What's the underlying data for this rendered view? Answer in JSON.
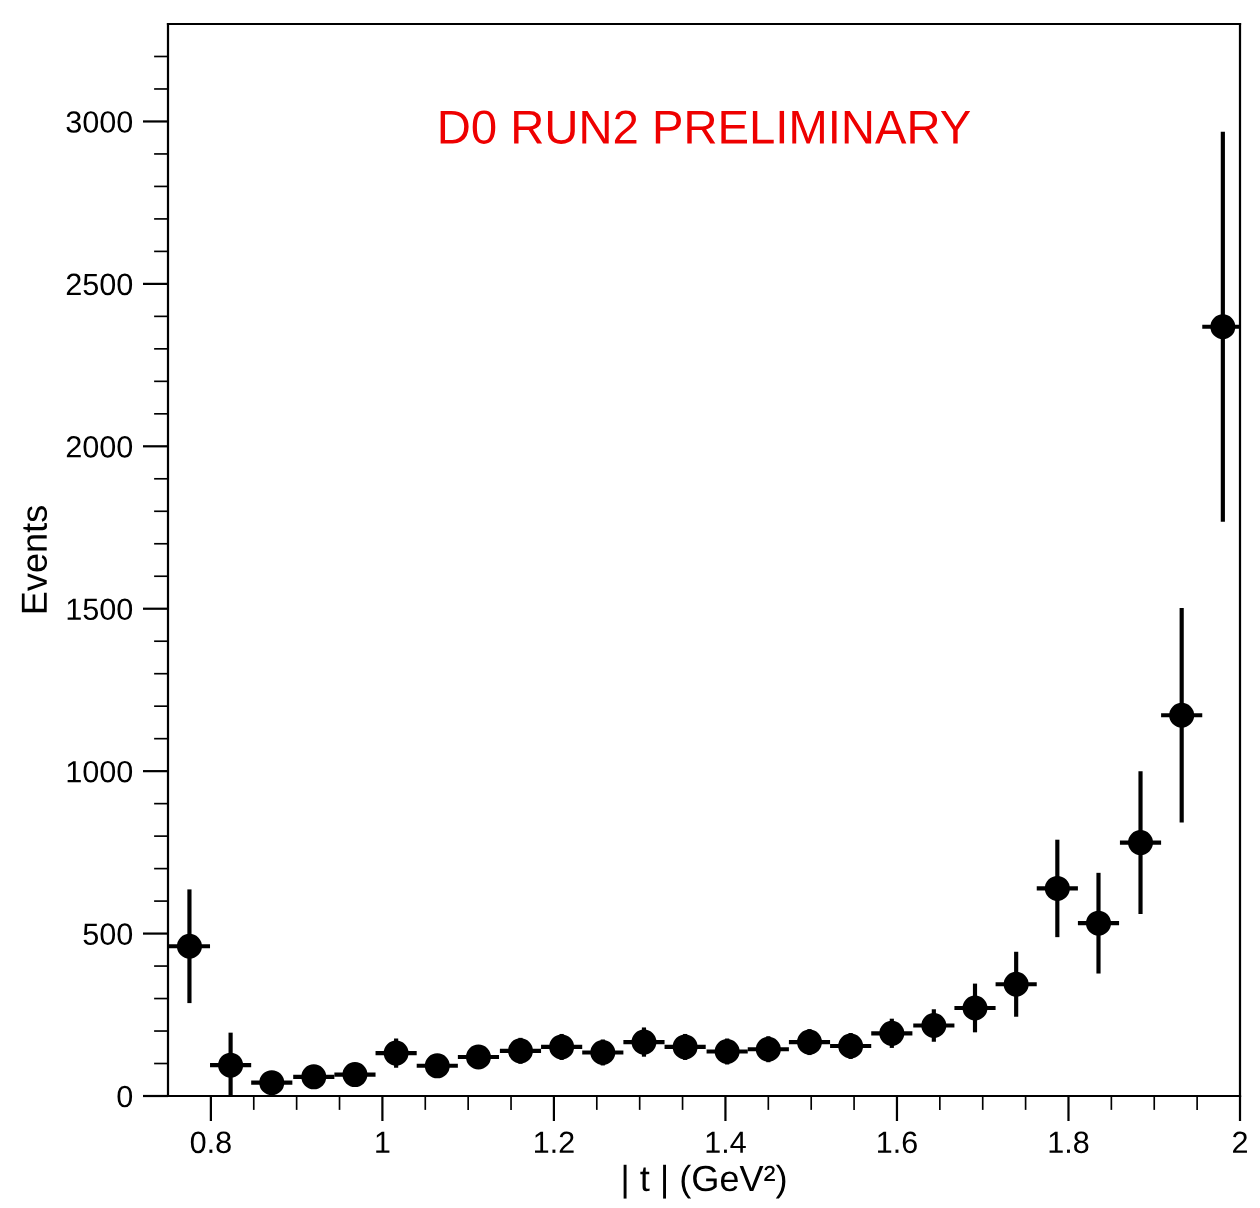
{
  "chart_data": {
    "type": "scatter",
    "xlabel": "| t | (GeV²)",
    "ylabel": "Events",
    "annotations": [
      "D0 RUN2 PRELIMINARY"
    ],
    "x": [
      0.775,
      0.823,
      0.871,
      0.92,
      0.968,
      1.016,
      1.064,
      1.112,
      1.161,
      1.209,
      1.257,
      1.305,
      1.353,
      1.402,
      1.45,
      1.498,
      1.546,
      1.594,
      1.643,
      1.691,
      1.739,
      1.787,
      1.835,
      1.884,
      1.932,
      1.98
    ],
    "series": [
      {
        "color": "#000000",
        "values": [
          461,
          95,
          41,
          59,
          66,
          132,
          93,
          120,
          139,
          151,
          134,
          166,
          151,
          137,
          144,
          166,
          154,
          193,
          217,
          271,
          344,
          639,
          532,
          780,
          1172,
          2368
        ],
        "errors": [
          175,
          100,
          30,
          30,
          30,
          45,
          35,
          35,
          40,
          40,
          40,
          45,
          40,
          40,
          40,
          40,
          40,
          45,
          50,
          75,
          100,
          150,
          155,
          220,
          330,
          600
        ],
        "xerrors": [
          0.024,
          0.024,
          0.024,
          0.024,
          0.024,
          0.024,
          0.024,
          0.024,
          0.024,
          0.024,
          0.024,
          0.024,
          0.024,
          0.024,
          0.024,
          0.024,
          0.024,
          0.024,
          0.024,
          0.024,
          0.024,
          0.024,
          0.024,
          0.024,
          0.024,
          0.024
        ]
      }
    ],
    "marker": "circle",
    "xlim": [
      0.75,
      2
    ],
    "ylim": [
      0,
      3300
    ],
    "xticks": [
      {
        "value": 0.8,
        "label": "0.8"
      },
      {
        "value": 1,
        "label": "1"
      },
      {
        "value": 1.2,
        "label": "1.2"
      },
      {
        "value": 1.4,
        "label": "1.4"
      },
      {
        "value": 1.6,
        "label": "1.6"
      },
      {
        "value": 1.8,
        "label": "1.8"
      },
      {
        "value": 2,
        "label": "2"
      },
      {
        "value": 0.85,
        "label": null
      },
      {
        "value": 0.9,
        "label": null
      },
      {
        "value": 0.95,
        "label": null
      },
      {
        "value": 1.05,
        "label": null
      },
      {
        "value": 1.1,
        "label": null
      },
      {
        "value": 1.15,
        "label": null
      },
      {
        "value": 1.25,
        "label": null
      },
      {
        "value": 1.3,
        "label": null
      },
      {
        "value": 1.35,
        "label": null
      },
      {
        "value": 1.45,
        "label": null
      },
      {
        "value": 1.5,
        "label": null
      },
      {
        "value": 1.55,
        "label": null
      },
      {
        "value": 1.65,
        "label": null
      },
      {
        "value": 1.7,
        "label": null
      },
      {
        "value": 1.75,
        "label": null
      },
      {
        "value": 1.85,
        "label": null
      },
      {
        "value": 1.9,
        "label": null
      },
      {
        "value": 1.95,
        "label": null
      }
    ],
    "yticks": [
      0,
      500,
      1000,
      1500,
      2000,
      2500,
      3000,
      {
        "value": 100,
        "label": null
      },
      {
        "value": 200,
        "label": null
      },
      {
        "value": 300,
        "label": null
      },
      {
        "value": 400,
        "label": null
      },
      {
        "value": 600,
        "label": null
      },
      {
        "value": 700,
        "label": null
      },
      {
        "value": 800,
        "label": null
      },
      {
        "value": 900,
        "label": null
      },
      {
        "value": 1100,
        "label": null
      },
      {
        "value": 1200,
        "label": null
      },
      {
        "value": 1300,
        "label": null
      },
      {
        "value": 1400,
        "label": null
      },
      {
        "value": 1600,
        "label": null
      },
      {
        "value": 1700,
        "label": null
      },
      {
        "value": 1800,
        "label": null
      },
      {
        "value": 1900,
        "label": null
      },
      {
        "value": 2100,
        "label": null
      },
      {
        "value": 2200,
        "label": null
      },
      {
        "value": 2300,
        "label": null
      },
      {
        "value": 2400,
        "label": null
      },
      {
        "value": 2600,
        "label": null
      },
      {
        "value": 2700,
        "label": null
      },
      {
        "value": 2800,
        "label": null
      },
      {
        "value": 2900,
        "label": null
      },
      {
        "value": 3100,
        "label": null
      },
      {
        "value": 3200,
        "label": null
      }
    ]
  }
}
